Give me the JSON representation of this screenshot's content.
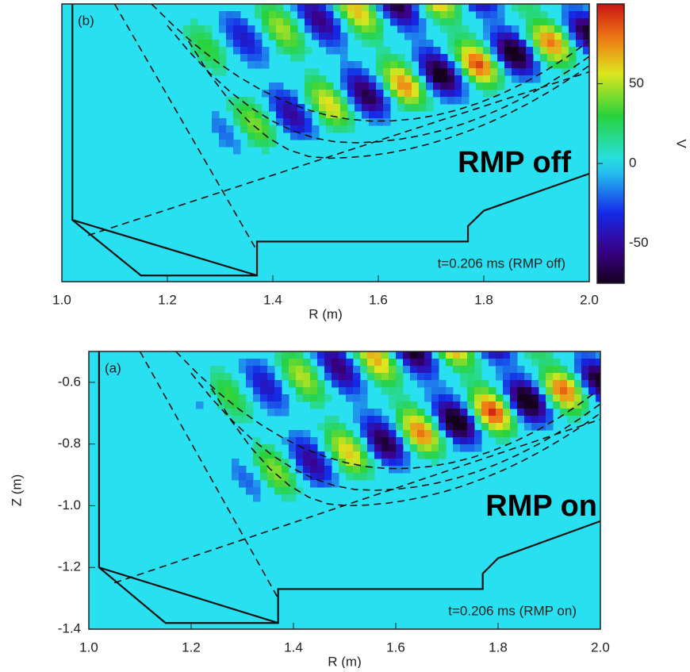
{
  "chart_data": [
    {
      "type": "heatmap",
      "panel_label": "(b)",
      "annotation": "t=0.206 ms (RMP off)",
      "overlay_label": "RMP off",
      "x_label": "R (m)",
      "xlim": [
        1.0,
        2.0
      ],
      "xticks": [
        {
          "value": 1.0,
          "label": "1.0"
        },
        1.2,
        1.4,
        1.6,
        1.8,
        {
          "value": 2.0,
          "label": "2.0"
        }
      ],
      "ylim": [
        -1.4,
        -0.5
      ],
      "colorbar": {
        "label": "V",
        "lim": [
          -75,
          100
        ],
        "ticks": [
          50,
          0,
          -50
        ]
      }
    },
    {
      "type": "heatmap",
      "panel_label": "(a)",
      "annotation": "t=0.206 ms (RMP on)",
      "overlay_label": "RMP on",
      "x_label": "R (m)",
      "xlim": [
        1.0,
        2.0
      ],
      "xticks": [
        {
          "value": 1.0,
          "label": "1.0"
        },
        1.2,
        1.4,
        1.6,
        1.8,
        {
          "value": 2.0,
          "label": "2.0"
        }
      ],
      "y_label": "Z (m)",
      "ylim": [
        -1.4,
        -0.5
      ],
      "yticks": [
        -0.6,
        -0.8,
        {
          "value": -1.0,
          "label": "-1.0"
        },
        -1.2,
        -1.4
      ]
    }
  ]
}
